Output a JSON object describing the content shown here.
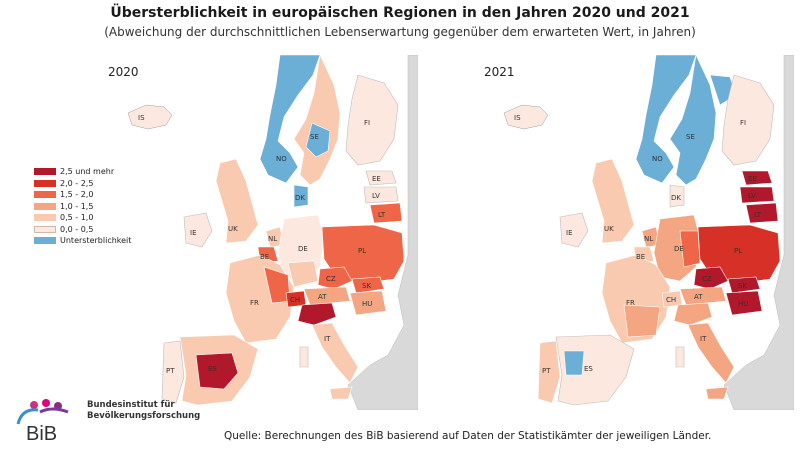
{
  "title": "Übersterblichkeit in europäischen Regionen in den Jahren 2020 und 2021",
  "subtitle": "(Abweichung der durchschnittlichen Lebenserwartung gegenüber dem erwarteten Wert, in Jahren)",
  "maps": [
    {
      "year": "2020"
    },
    {
      "year": "2021"
    }
  ],
  "legend": {
    "items": [
      {
        "label": "2,5 und mehr",
        "color": "#b2182b"
      },
      {
        "label": "2,0 - 2,5",
        "color": "#d73027"
      },
      {
        "label": "1,5 - 2,0",
        "color": "#ef6548"
      },
      {
        "label": "1,0 - 1,5",
        "color": "#f4a582"
      },
      {
        "label": "0,5 - 1,0",
        "color": "#f9c9b0"
      },
      {
        "label": "0,0 - 0,5",
        "color": "#fde8df"
      },
      {
        "label": "Untersterblichkeit",
        "color": "#6baed6"
      }
    ]
  },
  "country_labels": [
    "IS",
    "FI",
    "SE",
    "NO",
    "EE",
    "LV",
    "LT",
    "UK",
    "IE",
    "DK",
    "NL",
    "PL",
    "DE",
    "BE",
    "CZ",
    "FR",
    "AT",
    "SK",
    "HU",
    "CH",
    "IT",
    "PT",
    "ES"
  ],
  "colors": {
    "no_data": "#d9d9d9",
    "sea": "#ffffff"
  },
  "logo": {
    "name_line1": "Bundesinstitut für",
    "name_line2": "Bevölkerungsforschung",
    "acronym": "BiB"
  },
  "source": "Quelle: Berechnungen des BiB basierend auf Daten der Statistikämter der jeweiligen Länder."
}
